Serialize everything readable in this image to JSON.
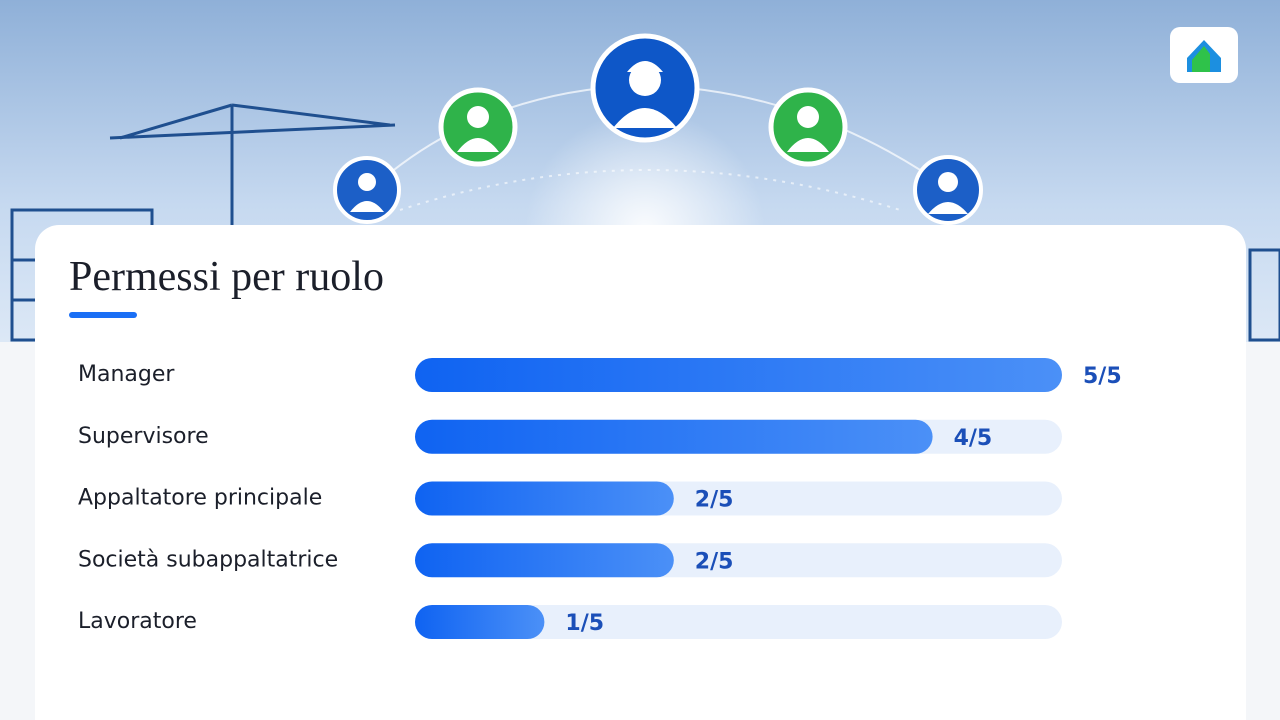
{
  "chart_data": {
    "type": "bar",
    "orientation": "horizontal",
    "title": "Permessi per ruolo",
    "categories": [
      "Manager",
      "Supervisore",
      "Appaltatore principale",
      "Società subappaltatrice",
      "Lavoratore"
    ],
    "values": [
      5,
      4,
      2,
      2,
      1
    ],
    "value_labels": [
      "5/5",
      "4/5",
      "2/5",
      "2/5",
      "1/5"
    ],
    "xlim": [
      0,
      5
    ],
    "color": "#0f63f2"
  }
}
